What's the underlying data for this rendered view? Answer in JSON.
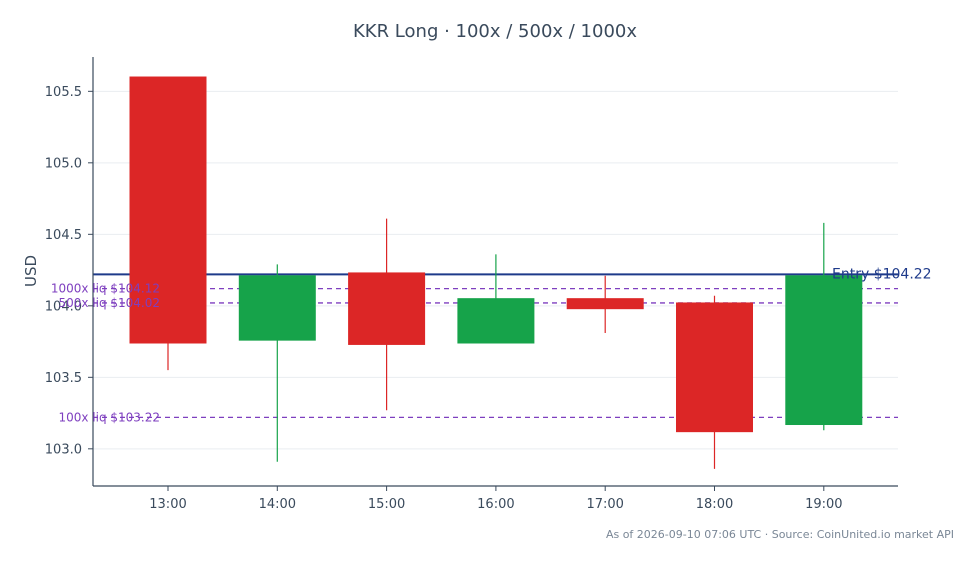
{
  "chart_data": {
    "type": "candlestick",
    "title": "KKR Long · 100x / 500x / 1000x",
    "xlabel": "",
    "ylabel": "USD",
    "ylim": [
      102.74,
      105.74
    ],
    "yticks": [
      "103.0",
      "103.5",
      "104.0",
      "104.5",
      "105.0",
      "105.5"
    ],
    "ytick_values": [
      103.0,
      103.5,
      104.0,
      104.5,
      105.0,
      105.5
    ],
    "grid": "horizontal",
    "categories": [
      "13:00",
      "14:00",
      "15:00",
      "16:00",
      "17:00",
      "18:00",
      "19:00"
    ],
    "candles": [
      {
        "time": "13:00",
        "open": 105.6,
        "high": 105.6,
        "low": 103.55,
        "close": 103.74
      },
      {
        "time": "14:00",
        "open": 103.76,
        "high": 104.29,
        "low": 102.91,
        "close": 104.21
      },
      {
        "time": "15:00",
        "open": 104.23,
        "high": 104.61,
        "low": 103.27,
        "close": 103.73
      },
      {
        "time": "16:00",
        "open": 103.74,
        "high": 104.36,
        "low": 103.74,
        "close": 104.05
      },
      {
        "time": "17:00",
        "open": 104.05,
        "high": 104.21,
        "low": 103.81,
        "close": 103.98
      },
      {
        "time": "18:00",
        "open": 104.02,
        "high": 104.07,
        "low": 102.86,
        "close": 103.12
      },
      {
        "time": "19:00",
        "open": 103.17,
        "high": 104.58,
        "low": 103.13,
        "close": 104.21
      }
    ],
    "reference_lines": [
      {
        "label": "Entry $104.22",
        "value": 104.22,
        "style": "solid"
      },
      {
        "label": "1000x liq $104.12",
        "value": 104.12,
        "style": "dashed"
      },
      {
        "label": "500x liq $104.02",
        "value": 104.02,
        "style": "dashed"
      },
      {
        "label": "100x liq $103.22",
        "value": 103.22,
        "style": "dashed"
      }
    ],
    "colors": {
      "up": "#16a34a",
      "down": "#dc2626",
      "entry": "#1e3a8a",
      "liq": "#7e3fbf",
      "axis": "#3a4a5c",
      "grid": "#e9edf1",
      "title": "#3a4a5c",
      "footer": "#7a8796"
    }
  },
  "footer": "As of 2026-09-10 07:06 UTC · Source: CoinUnited.io market API"
}
